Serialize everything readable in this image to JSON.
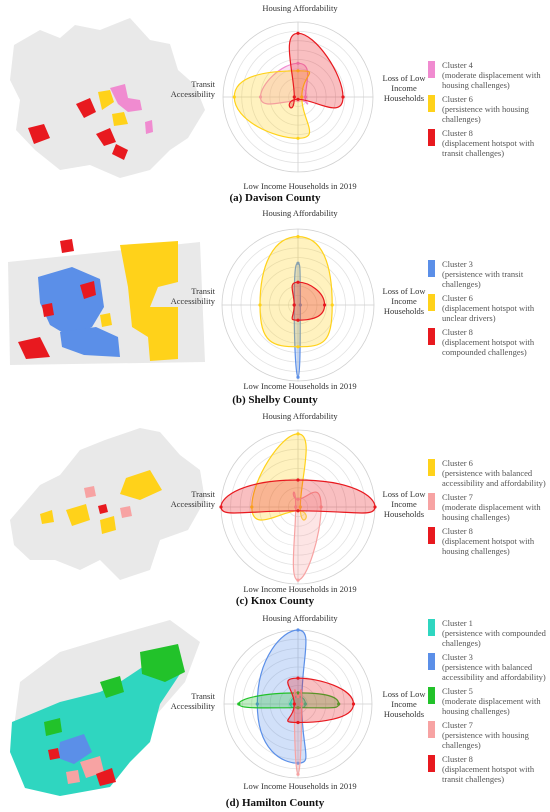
{
  "panels": [
    {
      "caption": "(a) Davison County",
      "axes": {
        "top": "Housing Affordability",
        "right": "Loss of Low Income Households",
        "bottom": "Low Income Households in 2019",
        "left": "Transit Accessibility"
      },
      "legend": [
        {
          "cluster": "Cluster 4",
          "desc": "(moderate displacement with housing challenges)",
          "color": "#f08bd0"
        },
        {
          "cluster": "Cluster 6",
          "desc": "(persistence with housing challenges)",
          "color": "#ffd21a"
        },
        {
          "cluster": "Cluster 8",
          "desc": "(displacement hotspot with transit challenges)",
          "color": "#e8191f"
        }
      ],
      "radar_values": [
        [
          0.45,
          0.1,
          0.05,
          0.5
        ],
        [
          0.35,
          0.05,
          0.55,
          0.85
        ],
        [
          0.85,
          0.6,
          0.03,
          0.05
        ]
      ]
    },
    {
      "caption": "(b) Shelby County",
      "axes": {
        "top": "Housing Affordability",
        "right": "Loss of Low Income Households",
        "bottom": "Low Income Households in 2019",
        "left": "Transit Accessibility"
      },
      "legend": [
        {
          "cluster": "Cluster 3",
          "desc": "(persistence with transit challenges)",
          "color": "#5b8fe8"
        },
        {
          "cluster": "Cluster 6",
          "desc": "(displacement hotspot with unclear drivers)",
          "color": "#ffd21a"
        },
        {
          "cluster": "Cluster 8",
          "desc": "(displacement hotspot with compounded challenges)",
          "color": "#e8191f"
        }
      ],
      "radar_values": [
        [
          0.55,
          0.03,
          0.95,
          0.05
        ],
        [
          0.9,
          0.45,
          0.55,
          0.5
        ],
        [
          0.3,
          0.35,
          0.2,
          0.05
        ]
      ]
    },
    {
      "caption": "(c) Knox County",
      "axes": {
        "top": "Housing Affordability",
        "right": "Loss of Low Income Households",
        "bottom": "Low Income Households in 2019",
        "left": "Transit Accessibility"
      },
      "legend": [
        {
          "cluster": "Cluster 6",
          "desc": "(persistence with balanced accessibility and affordability)",
          "color": "#ffd21a"
        },
        {
          "cluster": "Cluster 7",
          "desc": "(moderate displacement with housing challenges)",
          "color": "#f7a3a3"
        },
        {
          "cluster": "Cluster 8",
          "desc": "(displacement hotspot with housing challenges)",
          "color": "#e8191f"
        }
      ],
      "radar_values": [
        [
          0.95,
          0.03,
          0.05,
          0.6
        ],
        [
          0.1,
          0.3,
          0.95,
          0.03
        ],
        [
          0.35,
          1.0,
          0.05,
          1.0
        ]
      ]
    },
    {
      "caption": "(d) Hamilton County",
      "axes": {
        "top": "Housing Affordability",
        "right": "Loss of Low Income Households",
        "bottom": "Low Income Households in 2019",
        "left": "Transit Accessibility"
      },
      "legend": [
        {
          "cluster": "Cluster 1",
          "desc": "(persistence with compounded challenges)",
          "color": "#2fd6c0"
        },
        {
          "cluster": "Cluster 3",
          "desc": "(persistence with balanced accessibility and affordability)",
          "color": "#5b8fe8"
        },
        {
          "cluster": "Cluster 5",
          "desc": "(moderate displacement with housing challenges)",
          "color": "#22c22a"
        },
        {
          "cluster": "Cluster 7",
          "desc": "(persistence with housing challenges)",
          "color": "#f7a3a3"
        },
        {
          "cluster": "Cluster 8",
          "desc": "(displacement hotspot with transit challenges)",
          "color": "#e8191f"
        }
      ],
      "radar_values": [
        [
          0.1,
          0.1,
          0.05,
          0.1
        ],
        [
          1.0,
          0.05,
          0.8,
          0.55
        ],
        [
          0.15,
          0.55,
          0.05,
          0.8
        ],
        [
          0.1,
          0.05,
          0.95,
          0.05
        ],
        [
          0.35,
          0.75,
          0.25,
          0.05
        ]
      ]
    }
  ]
}
